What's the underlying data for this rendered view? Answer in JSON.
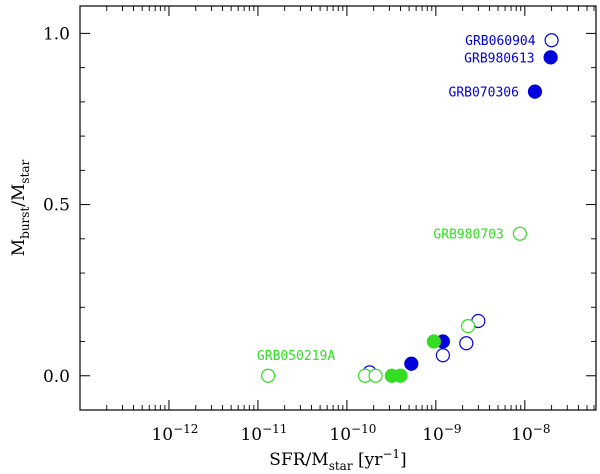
{
  "chart_data": {
    "type": "scatter",
    "title": "",
    "xscale": "log",
    "xlim_log10": [
      -13.0,
      -7.2
    ],
    "ylim": [
      -0.1,
      1.08
    ],
    "xlabel": {
      "main": "SFR/M",
      "sub": "star",
      "units": " [yr",
      "sup": "−1",
      "close": "]"
    },
    "ylabel": {
      "main1": "M",
      "sub1": "burst",
      "sep": "/M",
      "sub2": "star"
    },
    "x_ticks": [
      {
        "log10": -12,
        "base": "10",
        "exp": "−12"
      },
      {
        "log10": -11,
        "base": "10",
        "exp": "−11"
      },
      {
        "log10": -10,
        "base": "10",
        "exp": "−10"
      },
      {
        "log10": -9,
        "base": "10",
        "exp": "−9"
      },
      {
        "log10": -8,
        "base": "10",
        "exp": "−8"
      }
    ],
    "y_ticks": [
      {
        "value": 0.0,
        "label": "0.0"
      },
      {
        "value": 0.5,
        "label": "0.5"
      },
      {
        "value": 1.0,
        "label": "1.0"
      }
    ],
    "y_minor_step": 0.1,
    "colors": {
      "blue": "#0000dd",
      "green": "#33dd22"
    },
    "series": [
      {
        "name": "blue-open",
        "color": "#0000dd",
        "filled": false,
        "points": [
          {
            "x": 2e-08,
            "y": 0.98
          },
          {
            "x": 3e-09,
            "y": 0.16
          },
          {
            "x": 2.2e-09,
            "y": 0.095
          },
          {
            "x": 1.2e-09,
            "y": 0.06
          },
          {
            "x": 1.8e-10,
            "y": 0.01
          }
        ]
      },
      {
        "name": "blue-filled",
        "color": "#0000dd",
        "filled": true,
        "points": [
          {
            "x": 1.95e-08,
            "y": 0.93
          },
          {
            "x": 1.3e-08,
            "y": 0.83
          },
          {
            "x": 1.2e-09,
            "y": 0.1
          },
          {
            "x": 5.3e-10,
            "y": 0.035
          }
        ]
      },
      {
        "name": "green-open",
        "color": "#33dd22",
        "filled": false,
        "points": [
          {
            "x": 8.8e-09,
            "y": 0.415
          },
          {
            "x": 2.3e-09,
            "y": 0.145
          },
          {
            "x": 1.3e-11,
            "y": 0.0
          },
          {
            "x": 1.6e-10,
            "y": 0.0
          },
          {
            "x": 2.1e-10,
            "y": 0.0
          }
        ]
      },
      {
        "name": "green-filled",
        "color": "#33dd22",
        "filled": true,
        "points": [
          {
            "x": 9.5e-10,
            "y": 0.1
          },
          {
            "x": 3.2e-10,
            "y": 0.0
          },
          {
            "x": 4e-10,
            "y": 0.0
          }
        ]
      }
    ],
    "annotations": [
      {
        "text": "GRB060904",
        "color": "#0000dd",
        "ref": {
          "x": 2e-08,
          "y": 0.98
        }
      },
      {
        "text": "GRB980613",
        "color": "#0000dd",
        "ref": {
          "x": 1.95e-08,
          "y": 0.93
        }
      },
      {
        "text": "GRB070306",
        "color": "#0000dd",
        "ref": {
          "x": 1.3e-08,
          "y": 0.83
        }
      },
      {
        "text": "GRB980703",
        "color": "#33dd22",
        "ref": {
          "x": 8.8e-09,
          "y": 0.415
        }
      },
      {
        "text": "GRB050219A",
        "color": "#33dd22",
        "ref": {
          "x": 1.3e-11,
          "y": 0.0
        }
      }
    ]
  }
}
